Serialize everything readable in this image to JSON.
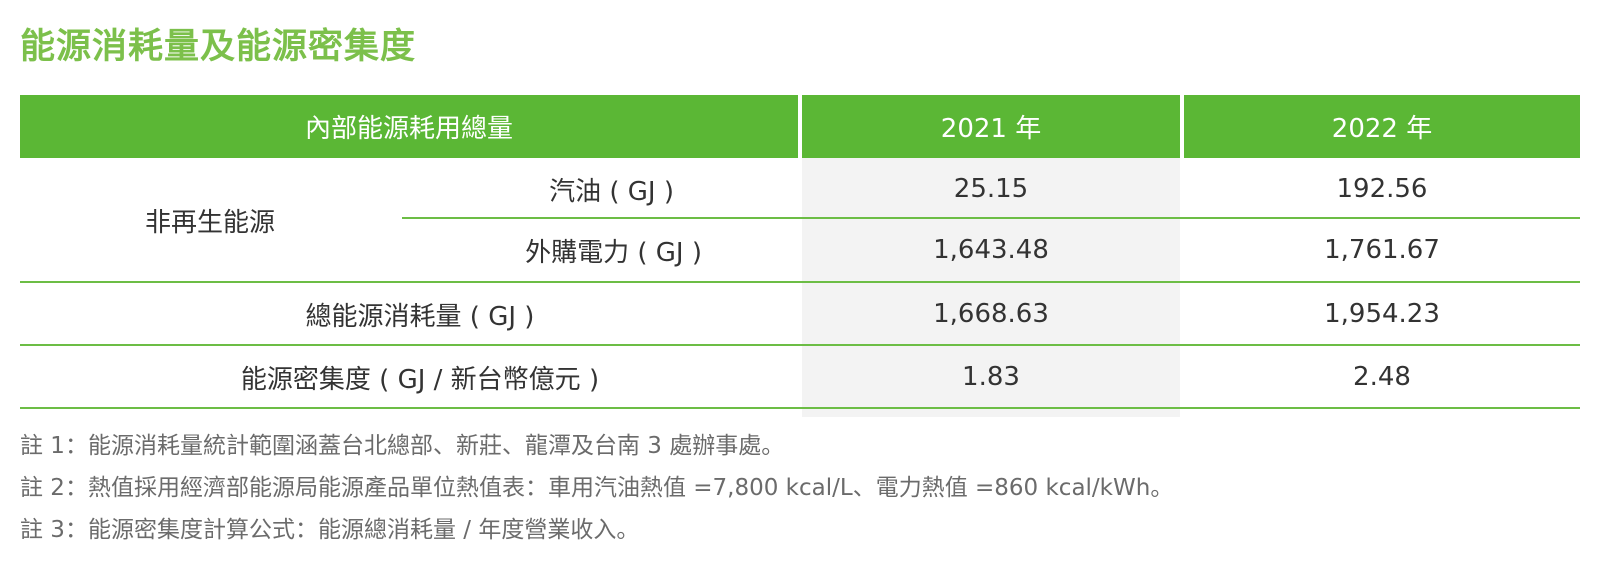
{
  "title": "能源消耗量及能源密集度",
  "table": {
    "header": {
      "label": "內部能源耗用總量",
      "col_2021": "2021 年",
      "col_2022": "2022 年"
    },
    "non_renewable_label": "非再生能源",
    "rows": [
      {
        "label": "汽油 ( GJ )",
        "v2021": "25.15",
        "v2022": "192.56"
      },
      {
        "label": "外購電力 ( GJ )",
        "v2021": "1,643.48",
        "v2022": "1,761.67"
      },
      {
        "label": "總能源消耗量 ( GJ )",
        "v2021": "1,668.63",
        "v2022": "1,954.23"
      },
      {
        "label": "能源密集度 ( GJ / 新台幣億元 )",
        "v2021": "1.83",
        "v2022": "2.48"
      }
    ]
  },
  "notes": [
    "註 1：能源消耗量統計範圍涵蓋台北總部、新莊、龍潭及台南 3 處辦事處。",
    "註 2：熱值採用經濟部能源局能源產品單位熱值表：車用汽油熱值 =7,800 kcal/L、電力熱值 =860 kcal/kWh。",
    "註 3：能源密集度計算公式：能源總消耗量 / 年度營業收入。"
  ]
}
